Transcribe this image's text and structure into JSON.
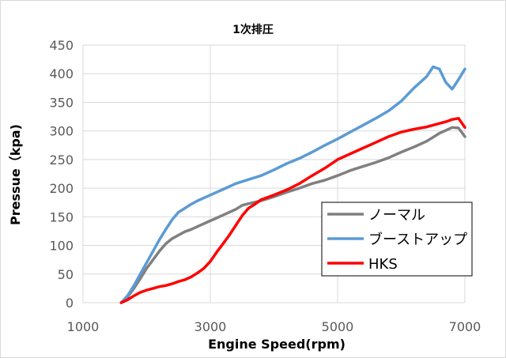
{
  "chart_data": {
    "type": "line",
    "title": "1次排圧",
    "xlabel": "Engine Speed(rpm)",
    "ylabel": "Pressue（kpa)",
    "xlim": [
      1000,
      7000
    ],
    "ylim": [
      0,
      450
    ],
    "x_ticks": [
      1000,
      3000,
      5000,
      7000
    ],
    "y_ticks": [
      0,
      50,
      100,
      150,
      200,
      250,
      300,
      350,
      400,
      450
    ],
    "grid": true,
    "legend_position": "lower-right",
    "series": [
      {
        "name": "ノーマル",
        "color": "#808080",
        "x": [
          1600,
          1700,
          1800,
          1900,
          2000,
          2100,
          2200,
          2300,
          2400,
          2500,
          2600,
          2700,
          2800,
          2900,
          3000,
          3200,
          3400,
          3500,
          3600,
          3800,
          4000,
          4200,
          4400,
          4600,
          4800,
          5000,
          5200,
          5400,
          5600,
          5800,
          6000,
          6200,
          6400,
          6600,
          6800,
          6900,
          7000
        ],
        "values": [
          0,
          10,
          25,
          42,
          60,
          75,
          90,
          103,
          112,
          118,
          124,
          128,
          133,
          138,
          143,
          153,
          163,
          170,
          173,
          178,
          185,
          193,
          200,
          208,
          214,
          222,
          231,
          238,
          245,
          253,
          263,
          272,
          282,
          296,
          306,
          305,
          290
        ]
      },
      {
        "name": "ブーストアップ",
        "color": "#5B9BD5",
        "x": [
          1600,
          1700,
          1800,
          1900,
          2000,
          2100,
          2200,
          2300,
          2400,
          2500,
          2600,
          2700,
          2800,
          3000,
          3200,
          3400,
          3600,
          3800,
          4000,
          4200,
          4400,
          4600,
          4800,
          5000,
          5200,
          5400,
          5600,
          5800,
          6000,
          6200,
          6400,
          6500,
          6600,
          6700,
          6800,
          6900,
          7000
        ],
        "values": [
          0,
          12,
          30,
          50,
          70,
          90,
          110,
          128,
          145,
          158,
          165,
          172,
          178,
          188,
          198,
          208,
          215,
          222,
          232,
          243,
          252,
          263,
          275,
          286,
          298,
          310,
          322,
          335,
          352,
          375,
          395,
          412,
          408,
          385,
          373,
          390,
          408
        ]
      },
      {
        "name": "HKS",
        "color": "#FF0000",
        "x": [
          1600,
          1700,
          1800,
          1900,
          2000,
          2100,
          2200,
          2300,
          2400,
          2500,
          2600,
          2700,
          2800,
          2900,
          3000,
          3100,
          3200,
          3300,
          3400,
          3500,
          3600,
          3700,
          3800,
          4000,
          4200,
          4400,
          4600,
          4800,
          5000,
          5200,
          5400,
          5600,
          5800,
          6000,
          6200,
          6400,
          6600,
          6700,
          6800,
          6900,
          7000
        ],
        "values": [
          0,
          5,
          12,
          18,
          22,
          25,
          28,
          30,
          33,
          37,
          40,
          45,
          52,
          60,
          72,
          88,
          103,
          118,
          135,
          152,
          165,
          172,
          180,
          188,
          197,
          208,
          222,
          235,
          250,
          260,
          270,
          280,
          290,
          298,
          303,
          307,
          313,
          316,
          320,
          322,
          306
        ]
      }
    ]
  }
}
